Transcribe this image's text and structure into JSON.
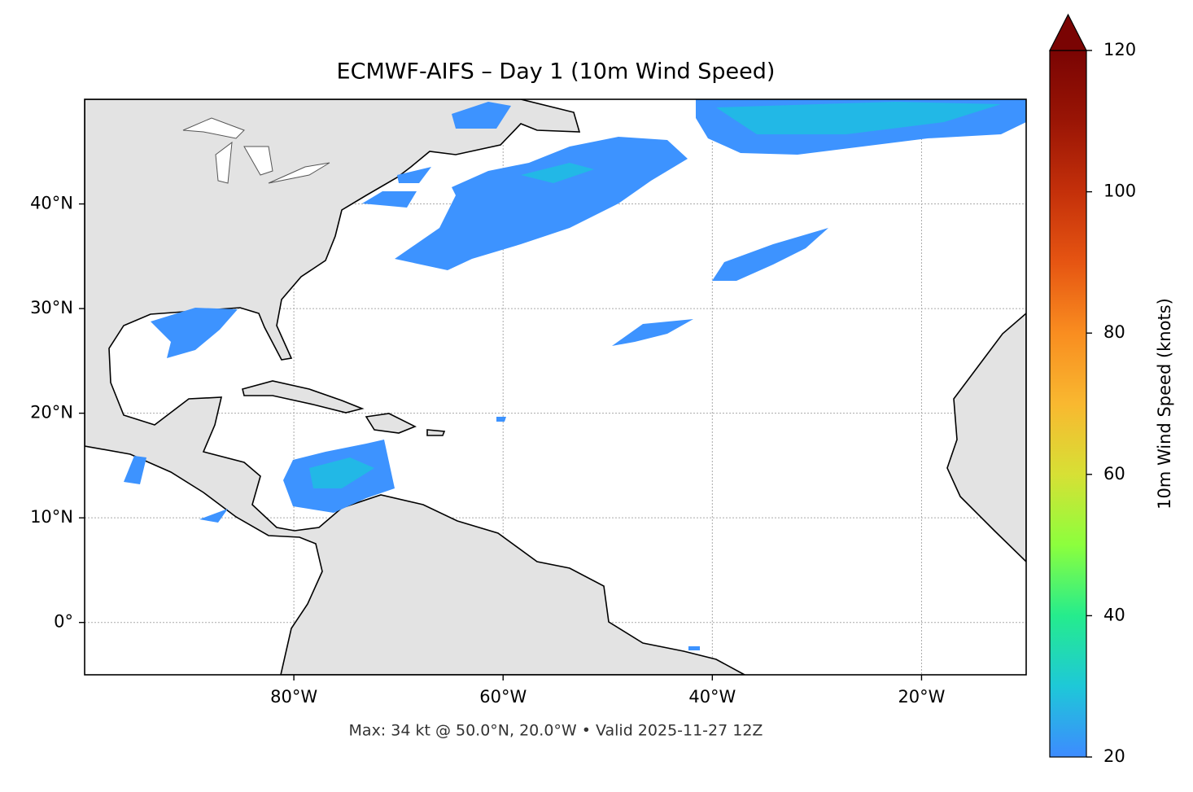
{
  "map": {
    "title": "ECMWF-AIFS – Day 1 (10m Wind Speed)",
    "annotation": "Max: 34 kt @ 50.0°N, 20.0°W • Valid 2025-11-27 12Z",
    "extent": {
      "lon": [
        -100,
        -10
      ],
      "lat": [
        -5,
        50
      ]
    },
    "grid": true,
    "xticks": [
      {
        "value": -80,
        "label": "80°W"
      },
      {
        "value": -60,
        "label": "60°W"
      },
      {
        "value": -40,
        "label": "40°W"
      },
      {
        "value": -20,
        "label": "20°W"
      }
    ],
    "yticks": [
      {
        "value": 0,
        "label": "0°"
      },
      {
        "value": 10,
        "label": "10°N"
      },
      {
        "value": 20,
        "label": "20°N"
      },
      {
        "value": 30,
        "label": "30°N"
      },
      {
        "value": 40,
        "label": "40°N"
      }
    ],
    "colorbar": {
      "label": "10m Wind Speed (knots)",
      "lim": [
        20,
        120
      ],
      "ticks": [
        20,
        40,
        60,
        80,
        100,
        120
      ],
      "colors": [
        "#3d8bff",
        "#1ec8d8",
        "#25ec8d",
        "#8cff3d",
        "#d7e035",
        "#f9b830",
        "#f98d20",
        "#e65512",
        "#c4300a",
        "#9a1505",
        "#7a0403"
      ],
      "extend_color": "#7a0403"
    }
  }
}
